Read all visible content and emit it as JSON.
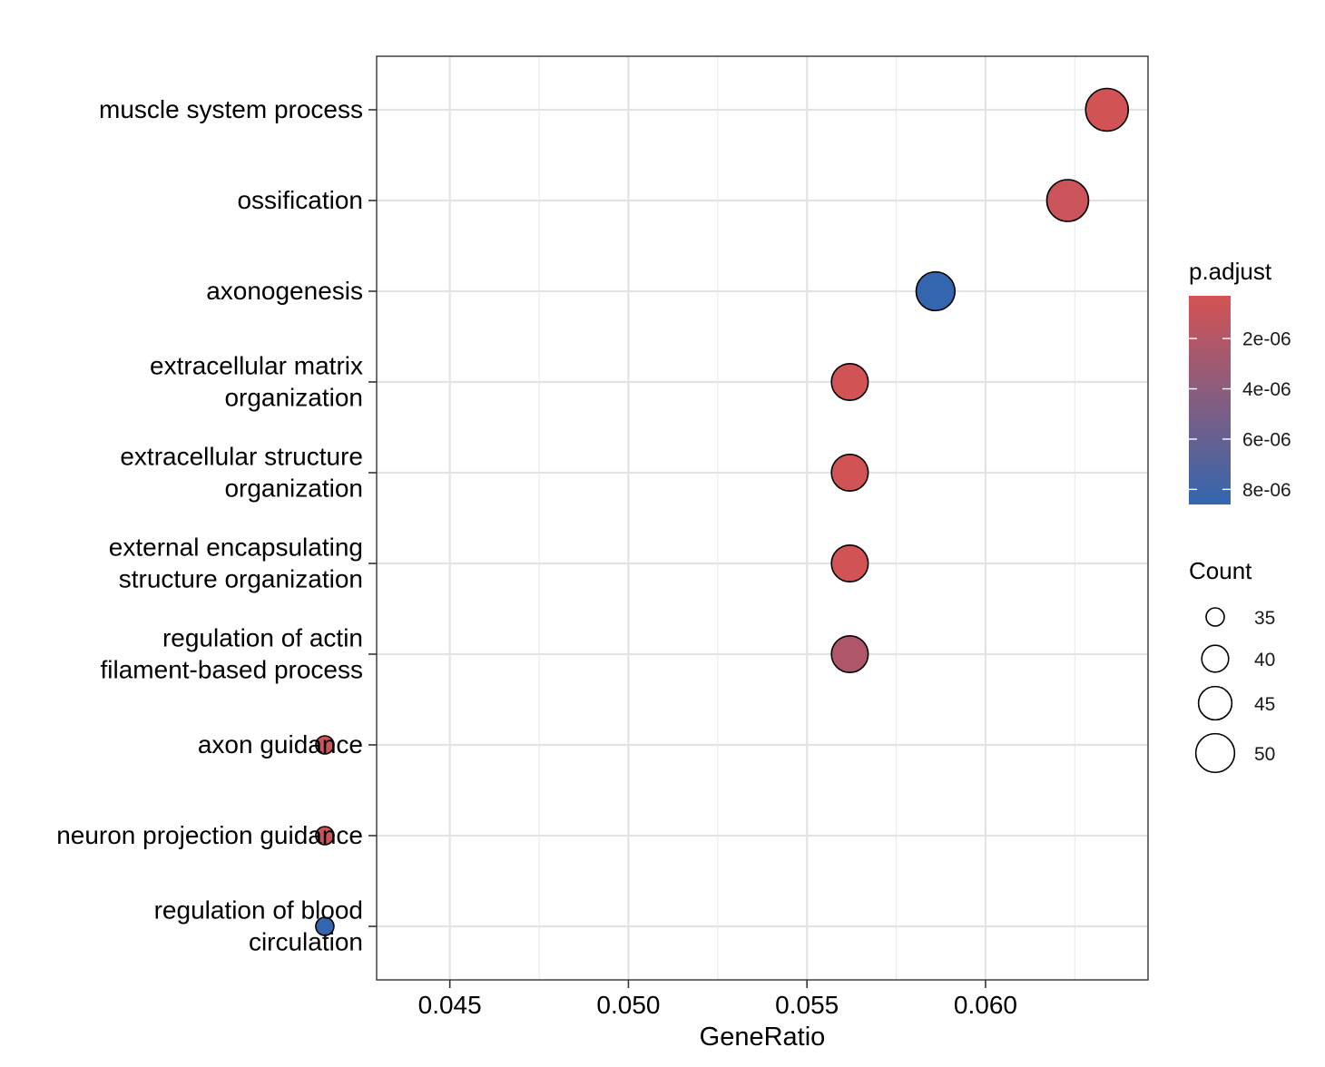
{
  "chart_data": {
    "type": "scatter",
    "xlabel": "GeneRatio",
    "ylabel": "",
    "xlim": [
      0.04295,
      0.06455
    ],
    "x_ticks": [
      0.045,
      0.05,
      0.055,
      0.06
    ],
    "x_tick_labels": [
      "0.045",
      "0.050",
      "0.055",
      "0.060"
    ],
    "grid": true,
    "categories": [
      [
        "muscle system process"
      ],
      [
        "ossification"
      ],
      [
        "axonogenesis"
      ],
      [
        "extracellular matrix",
        "organization"
      ],
      [
        "extracellular structure",
        "organization"
      ],
      [
        "external encapsulating",
        "structure organization"
      ],
      [
        "regulation of actin",
        "filament-based process"
      ],
      [
        "axon guidance"
      ],
      [
        "neuron projection guidance"
      ],
      [
        "regulation of blood",
        "circulation"
      ]
    ],
    "points": [
      {
        "gene_ratio": 0.0634,
        "count": 54,
        "p_adjust": 4e-07
      },
      {
        "gene_ratio": 0.0623,
        "count": 53,
        "p_adjust": 8e-07
      },
      {
        "gene_ratio": 0.0586,
        "count": 50,
        "p_adjust": 8.6e-06
      },
      {
        "gene_ratio": 0.0562,
        "count": 48,
        "p_adjust": 4e-07
      },
      {
        "gene_ratio": 0.0562,
        "count": 48,
        "p_adjust": 4e-07
      },
      {
        "gene_ratio": 0.0562,
        "count": 48,
        "p_adjust": 4e-07
      },
      {
        "gene_ratio": 0.0562,
        "count": 48,
        "p_adjust": 2.2e-06
      },
      {
        "gene_ratio": 0.0415,
        "count": 35,
        "p_adjust": 8e-07
      },
      {
        "gene_ratio": 0.0415,
        "count": 35,
        "p_adjust": 8e-07
      },
      {
        "gene_ratio": 0.0415,
        "count": 35,
        "p_adjust": 8.6e-06
      }
    ],
    "color_legend": {
      "title": "p.adjust",
      "range": [
        3e-07,
        8.6e-06
      ],
      "low_color": "#d45354",
      "high_color": "#3366ae",
      "ticks": [
        2e-06,
        4e-06,
        6e-06,
        8e-06
      ],
      "tick_labels": [
        "2e-06",
        "4e-06",
        "6e-06",
        "8e-06"
      ]
    },
    "size_legend": {
      "title": "Count",
      "values": [
        35,
        40,
        45,
        50
      ],
      "labels": [
        "35",
        "40",
        "45",
        "50"
      ]
    },
    "legend_position": "right"
  }
}
